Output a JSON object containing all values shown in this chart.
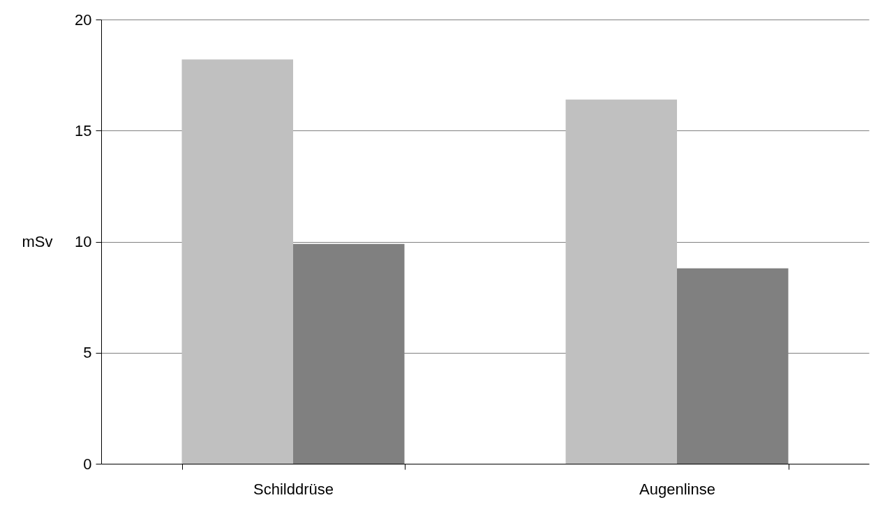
{
  "chart_data": {
    "type": "bar",
    "ylabel": "mSv",
    "categories": [
      "Schilddrüse",
      "Augenlinse"
    ],
    "series": [
      {
        "color": "#c0c0c0",
        "values": [
          18.2,
          16.4
        ]
      },
      {
        "color": "#808080",
        "values": [
          9.9,
          8.8
        ]
      }
    ],
    "ylim": [
      0,
      20
    ],
    "yticks": [
      0,
      5,
      10,
      15,
      20
    ],
    "grid": "y",
    "legend": false
  }
}
